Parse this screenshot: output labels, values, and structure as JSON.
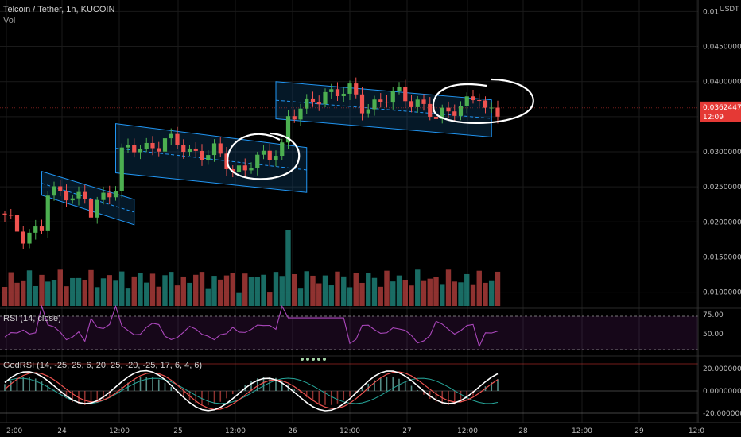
{
  "header": {
    "symbol": "Telcoin / Tether, 1h, KUCOIN",
    "volume_label": "Vol",
    "rsi_label": "RSI (14, close)",
    "godrsi_label": "GodRSI (14, -25, 25, 6, 20, 25, -20, -25, 17, 6, 4, 6)",
    "currency": "USDT"
  },
  "price_badge": {
    "value": "0.03624470",
    "countdown": "12:09",
    "color": "#e53935"
  },
  "colors": {
    "up": "#26a69a",
    "down": "#ef5350",
    "up_bright": "#4caf50",
    "channel": "#2196f3",
    "rsi": "#9c27b0"
  },
  "chart_data": [
    {
      "type": "candlestick",
      "price_axis_ticks": [
        "0.01",
        "0.04500000",
        "0.04000000",
        "0.03500000",
        "0.03000000",
        "0.02500000",
        "0.02000000",
        "0.01500000",
        "0.01000000"
      ],
      "time_axis_ticks": [
        "2:00",
        "24",
        "12:00",
        "25",
        "12:00",
        "26",
        "12:00",
        "27",
        "12:00",
        "28",
        "12:00",
        "29",
        "12:0"
      ],
      "ylim": [
        0.0095,
        0.0505
      ],
      "channels": [
        {
          "start_index": 6,
          "end_index": 21,
          "upper": [
            0.0272,
            0.0232
          ],
          "lower": [
            0.0238,
            0.0196
          ]
        },
        {
          "start_index": 18,
          "end_index": 49,
          "upper": [
            0.034,
            0.0306
          ],
          "lower": [
            0.027,
            0.0242
          ]
        },
        {
          "start_index": 44,
          "end_index": 79,
          "upper": [
            0.04,
            0.0374
          ],
          "lower": [
            0.0347,
            0.0321
          ]
        }
      ],
      "current_price": 0.0362447
    },
    {
      "type": "bar",
      "name": "Vol"
    },
    {
      "type": "line",
      "name": "RSI (14, close)",
      "levels": [
        70,
        30
      ],
      "axis_ticks": [
        "75.00",
        "50.00"
      ]
    },
    {
      "type": "line",
      "name": "GodRSI",
      "axis_ticks": [
        "20.00000000",
        "0.00000000",
        "-20.00000000"
      ]
    }
  ]
}
